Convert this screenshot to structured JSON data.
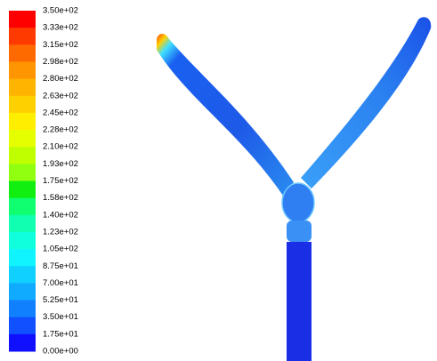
{
  "legend": {
    "labels": [
      "3.50e+02",
      "3.33e+02",
      "3.15e+02",
      "2.98e+02",
      "2.80e+02",
      "2.63e+02",
      "2.45e+02",
      "2.28e+02",
      "2.10e+02",
      "1.93e+02",
      "1.75e+02",
      "1.58e+02",
      "1.40e+02",
      "1.23e+02",
      "1.05e+02",
      "8.75e+01",
      "7.00e+01",
      "5.25e+01",
      "3.50e+01",
      "1.75e+01",
      "0.00e+00"
    ],
    "colors": [
      "#ff0000",
      "#ff3a00",
      "#ff6a00",
      "#ff9500",
      "#ffb400",
      "#ffd000",
      "#ffee00",
      "#e6ff00",
      "#c0ff00",
      "#90ff10",
      "#10ef10",
      "#10ff70",
      "#10ffb0",
      "#10ffdc",
      "#10f4ff",
      "#10d0ff",
      "#10aaff",
      "#1080ff",
      "#1050ff",
      "#1010ff"
    ]
  }
}
